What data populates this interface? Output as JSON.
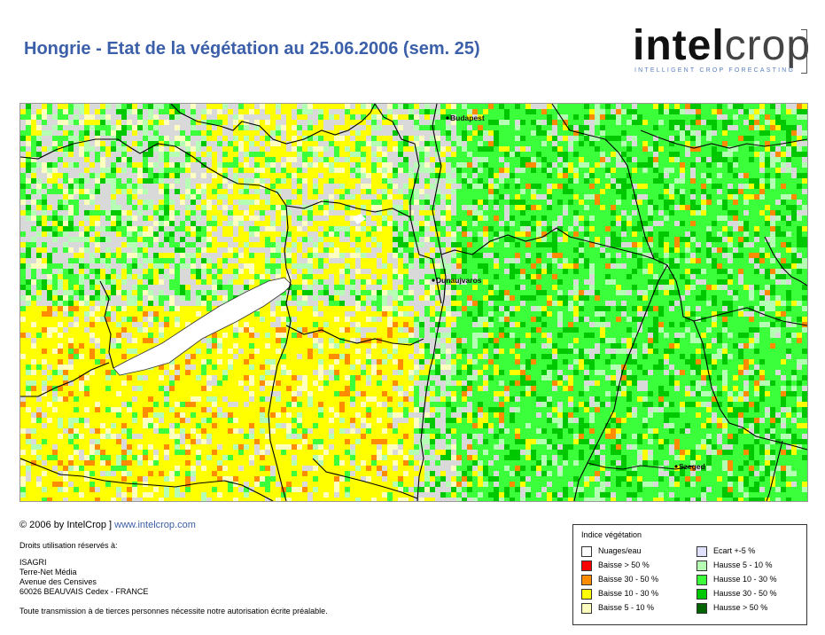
{
  "title": "Hongrie - Etat de la végétation au 25.06.2006 (sem. 25)",
  "logo": {
    "bold": "intel",
    "light": "crop",
    "tagline": "INTELLIGENT CROP FORECASTING"
  },
  "map": {
    "cities": [
      {
        "name": "Budapest"
      },
      {
        "name": "Dunaujvaros"
      },
      {
        "name": "Szeged"
      }
    ],
    "colors": {
      "background": "#d9d9d9",
      "border_line": "#000000"
    }
  },
  "footer": {
    "copyright": "© 2006 by IntelCrop ]",
    "website": "www.intelcrop.com",
    "rights": "Droits utilisation réservés à:",
    "address": [
      "ISAGRI",
      "Terre-Net Média",
      "Avenue des Censives",
      "60026 BEAUVAIS Cedex - FRANCE"
    ],
    "transmission": "Toute transmission à de tierces personnes nécessite notre autorisation écrite préalable."
  },
  "legend": {
    "title": "Indice végétation",
    "items": [
      {
        "label": "Nuages/eau",
        "color": "#ffffff"
      },
      {
        "label": "Baisse > 50 %",
        "color": "#ff0000"
      },
      {
        "label": "Baisse 30 - 50 %",
        "color": "#ff8c00"
      },
      {
        "label": "Baisse 10 - 30 %",
        "color": "#ffff00"
      },
      {
        "label": "Baisse 5 - 10 %",
        "color": "#ffffc0"
      },
      {
        "label": "Ecart +-5 %",
        "color": "#e0e0ff"
      },
      {
        "label": "Hausse 5 - 10 %",
        "color": "#b4ffb4"
      },
      {
        "label": "Hausse 10 - 30 %",
        "color": "#3cff3c"
      },
      {
        "label": "Hausse 30 - 50 %",
        "color": "#00c800"
      },
      {
        "label": "Hausse > 50 %",
        "color": "#006400"
      }
    ]
  }
}
